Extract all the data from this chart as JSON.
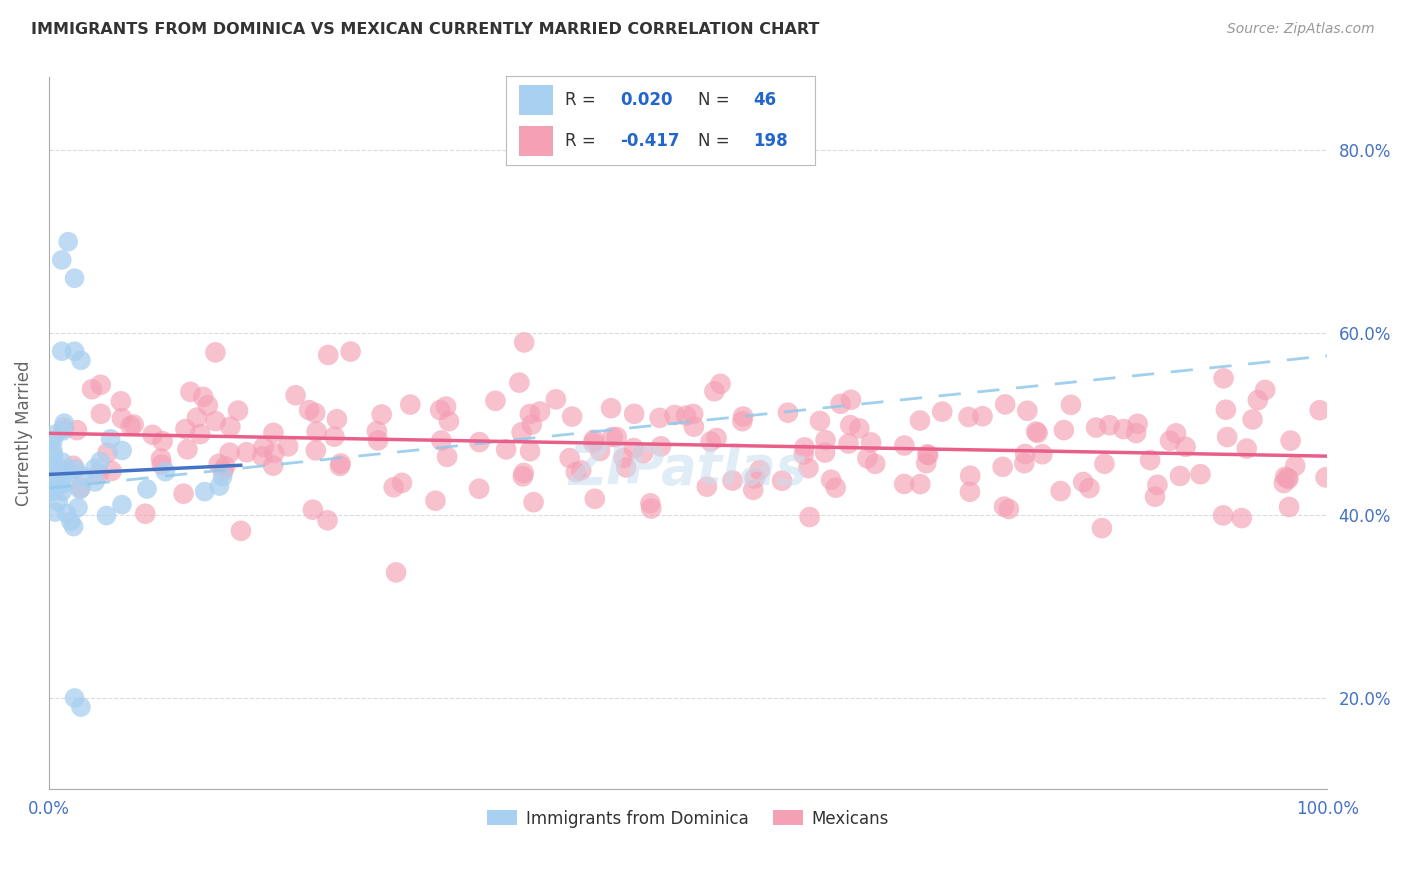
{
  "title": "IMMIGRANTS FROM DOMINICA VS MEXICAN CURRENTLY MARRIED CORRELATION CHART",
  "source": "Source: ZipAtlas.com",
  "ylabel": "Currently Married",
  "legend_label1": "Immigrants from Dominica",
  "legend_label2": "Mexicans",
  "R1": 0.02,
  "N1": 46,
  "R2": -0.417,
  "N2": 198,
  "xmin": 0.0,
  "xmax": 1.0,
  "ymin": 0.1,
  "ymax": 0.88,
  "color_blue": "#A8D0F0",
  "color_pink": "#F4A0B5",
  "color_blue_line": "#4472C4",
  "color_pink_line": "#E8608A",
  "color_dashed_blue": "#90C8E8",
  "background_color": "#FFFFFF",
  "grid_color": "#CCCCCC",
  "title_color": "#333333",
  "ytick_labels": [
    "20.0%",
    "40.0%",
    "60.0%",
    "80.0%"
  ],
  "ytick_vals": [
    0.2,
    0.4,
    0.6,
    0.8
  ],
  "xtick_labels": [
    "0.0%",
    "100.0%"
  ],
  "xtick_vals": [
    0.0,
    1.0
  ],
  "blue_line_x": [
    0.0,
    0.15
  ],
  "blue_line_y": [
    0.445,
    0.455
  ],
  "pink_line_x": [
    0.0,
    1.0
  ],
  "pink_line_y": [
    0.49,
    0.465
  ],
  "dashed_line_x": [
    0.0,
    1.0
  ],
  "dashed_line_y": [
    0.43,
    0.575
  ]
}
